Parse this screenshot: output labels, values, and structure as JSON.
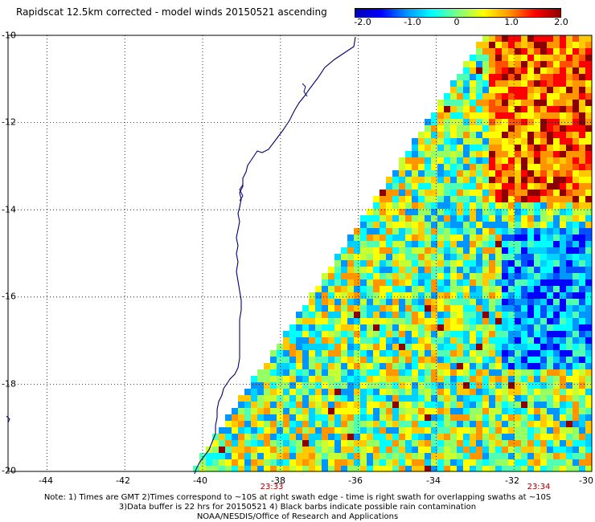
{
  "title": "Rapidscat 12.5km corrected - model winds 20150521 ascending",
  "colorbar": {
    "ticks": [
      "-2.0",
      "-1.0",
      "0",
      "1.0",
      "2.0"
    ],
    "range": [
      -2.0,
      2.0
    ],
    "colors": [
      "#0000b4",
      "#0000ff",
      "#0096ff",
      "#00ffff",
      "#7fff7f",
      "#ffff00",
      "#ff9600",
      "#ff0000",
      "#8b0000"
    ]
  },
  "map": {
    "lon_range": [
      -45,
      -30
    ],
    "lat_range": [
      -20,
      -10
    ],
    "lon_labels": [
      "-44",
      "-42",
      "-40",
      "-38",
      "-36",
      "-34",
      "-32",
      "-30"
    ],
    "lat_labels": [
      "-10",
      "-12",
      "-14",
      "-16",
      "-18",
      "-20"
    ],
    "grid": "dotted",
    "coastline_color": "#00006e"
  },
  "swath_times": [
    "23:33",
    "23:34"
  ],
  "notes": [
    "Note: 1) Times are GMT 2)Times correspond to ~10S at right swath edge - time is right swath for overlapping swaths at ~10S",
    "3)Data buffer is 22 hrs for 20150521 4) Black barbs indicate possible rain contamination",
    "NOAA/NESDIS/Office of Research and Applications"
  ]
}
